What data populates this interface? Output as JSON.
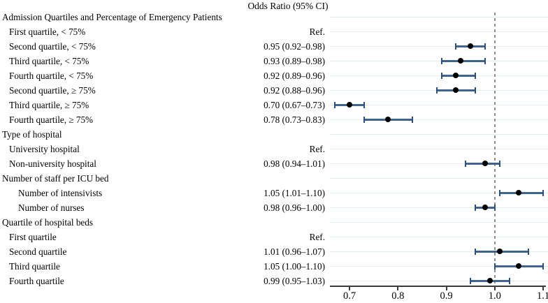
{
  "header": {
    "or_column_label": "Odds Ratio (95% CI)"
  },
  "chart_data": {
    "type": "forest",
    "title": "Odds Ratio (95% CI)",
    "x_axis": {
      "tick_labels": [
        "0.7",
        "0.8",
        "0.9",
        "1.0",
        "1.1"
      ],
      "tick_values": [
        0.7,
        0.8,
        0.9,
        1.0,
        1.1
      ],
      "xlim": [
        0.66,
        1.11
      ]
    },
    "reference_line": 1.0,
    "grid": "horizontal-row-lines",
    "legend": "none",
    "rows": [
      {
        "label": "Admission Quartiles and Percentage of Emergency Patients",
        "indent": 0,
        "or_text": "",
        "estimate": null,
        "ci_low": null,
        "ci_high": null
      },
      {
        "label": "First quartile, < 75%",
        "indent": 1,
        "or_text": "Ref.",
        "estimate": null,
        "ci_low": null,
        "ci_high": null
      },
      {
        "label": "Second quartile, < 75%",
        "indent": 1,
        "or_text": "0.95 (0.92–0.98)",
        "estimate": 0.95,
        "ci_low": 0.92,
        "ci_high": 0.98
      },
      {
        "label": "Third quartile, < 75%",
        "indent": 1,
        "or_text": "0.93 (0.89–0.98)",
        "estimate": 0.93,
        "ci_low": 0.89,
        "ci_high": 0.98
      },
      {
        "label": "Fourth quartile, < 75%",
        "indent": 1,
        "or_text": "0.92 (0.89–0.96)",
        "estimate": 0.92,
        "ci_low": 0.89,
        "ci_high": 0.96
      },
      {
        "label": "Second quartile, ≥ 75%",
        "indent": 1,
        "or_text": "0.92 (0.88–0.96)",
        "estimate": 0.92,
        "ci_low": 0.88,
        "ci_high": 0.96
      },
      {
        "label": "Third quartile, ≥ 75%",
        "indent": 1,
        "or_text": "0.70 (0.67–0.73)",
        "estimate": 0.7,
        "ci_low": 0.67,
        "ci_high": 0.73
      },
      {
        "label": "Fourth quartile, ≥ 75%",
        "indent": 1,
        "or_text": "0.78 (0.73–0.83)",
        "estimate": 0.78,
        "ci_low": 0.73,
        "ci_high": 0.83
      },
      {
        "label": "Type of hospital",
        "indent": 0,
        "or_text": "",
        "estimate": null,
        "ci_low": null,
        "ci_high": null
      },
      {
        "label": "University hospital",
        "indent": 1,
        "or_text": "Ref.",
        "estimate": null,
        "ci_low": null,
        "ci_high": null
      },
      {
        "label": "Non-university hospital",
        "indent": 1,
        "or_text": "0.98 (0.94–1.01)",
        "estimate": 0.98,
        "ci_low": 0.94,
        "ci_high": 1.01
      },
      {
        "label": "Number of staff per ICU bed",
        "indent": 0,
        "or_text": "",
        "estimate": null,
        "ci_low": null,
        "ci_high": null
      },
      {
        "label": "Number of intensivists",
        "indent": 2,
        "or_text": "1.05 (1.01–1.10)",
        "estimate": 1.05,
        "ci_low": 1.01,
        "ci_high": 1.1
      },
      {
        "label": "Number of nurses",
        "indent": 2,
        "or_text": "0.98 (0.96–1.00)",
        "estimate": 0.98,
        "ci_low": 0.96,
        "ci_high": 1.0
      },
      {
        "label": "Quartile of hospital beds",
        "indent": 0,
        "or_text": "",
        "estimate": null,
        "ci_low": null,
        "ci_high": null
      },
      {
        "label": "First quartile",
        "indent": 1,
        "or_text": "Ref.",
        "estimate": null,
        "ci_low": null,
        "ci_high": null
      },
      {
        "label": "Second quartile",
        "indent": 1,
        "or_text": "1.01 (0.96–1.07)",
        "estimate": 1.01,
        "ci_low": 0.96,
        "ci_high": 1.07
      },
      {
        "label": "Third quartile",
        "indent": 1,
        "or_text": "1.05 (1.00–1.10)",
        "estimate": 1.05,
        "ci_low": 1.0,
        "ci_high": 1.1
      },
      {
        "label": "Fourth quartile",
        "indent": 1,
        "or_text": "0.99 (0.95–1.03)",
        "estimate": 0.99,
        "ci_low": 0.95,
        "ci_high": 1.03
      }
    ],
    "colors": {
      "ci_bar": "#3e648c",
      "ci_cap": "#2e5078",
      "marker": "#000000",
      "row_gridline": "#e2ecf3",
      "reference_line": "#8f8f8f",
      "axis": "#3a3a3a",
      "text": "#000000"
    }
  }
}
